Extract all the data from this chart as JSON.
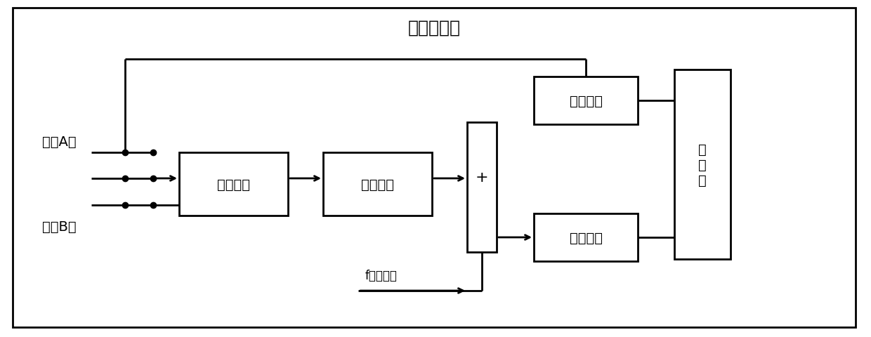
{
  "title": "测角电路板",
  "title_fontsize": 18,
  "label_jici_A": "激磁A相",
  "label_jici_B": "激磁B相",
  "label_yixiang": "移相电路",
  "label_tiaof": "调幅电路",
  "label_zhengxing1": "整形电路",
  "label_zhengxing2": "整形电路",
  "label_bianma": "编\n码\n器",
  "label_plus": "+",
  "label_feedback": "f反馈信号",
  "bg_color": "#ffffff",
  "box_color": "#ffffff",
  "border_color": "#000000",
  "line_color": "#000000",
  "text_color": "#000000",
  "font_size": 14,
  "small_font_size": 12
}
